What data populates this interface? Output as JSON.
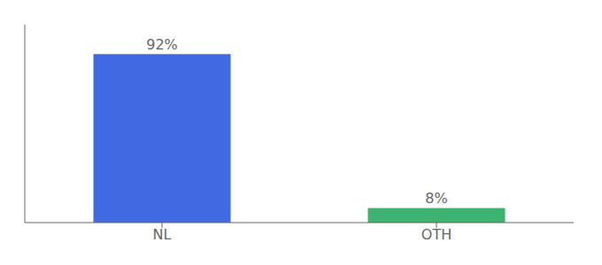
{
  "chart_data": {
    "type": "bar",
    "categories": [
      "NL",
      "OTH"
    ],
    "values": [
      92,
      8
    ],
    "value_labels": [
      "92%",
      "8%"
    ],
    "colors": [
      "#4169E1",
      "#3CB371"
    ],
    "ylim": [
      0,
      108
    ],
    "data_labels": true,
    "tick_labels": "x",
    "grid": false
  }
}
